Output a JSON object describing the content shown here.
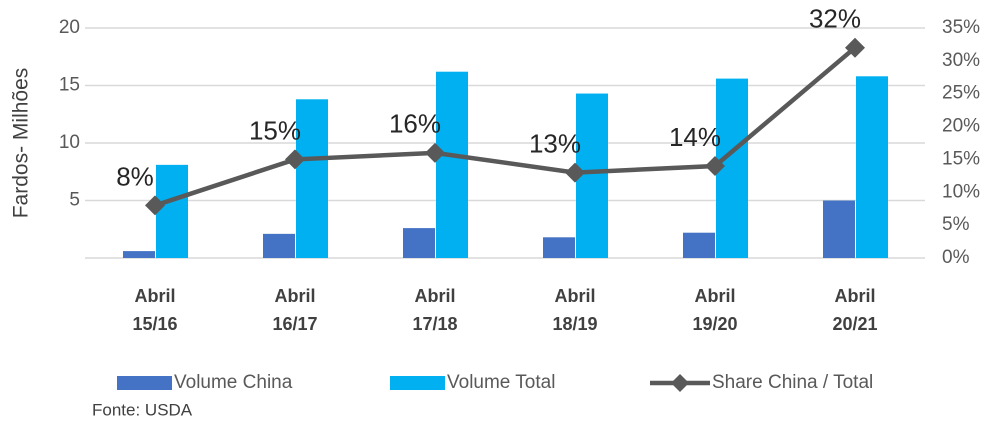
{
  "chart_data": {
    "type": "bar-line",
    "y_label": "Fardos- Milhões",
    "categories": [
      [
        "Abril",
        "15/16"
      ],
      [
        "Abril",
        "16/17"
      ],
      [
        "Abril",
        "17/18"
      ],
      [
        "Abril",
        "18/19"
      ],
      [
        "Abril",
        "19/20"
      ],
      [
        "Abril",
        "20/21"
      ]
    ],
    "series": [
      {
        "name": "Volume China",
        "color": "#4472c4",
        "type": "bar",
        "values": [
          0.6,
          2.1,
          2.6,
          1.8,
          2.2,
          5.0
        ]
      },
      {
        "name": "Volume Total",
        "color": "#00b0f0",
        "type": "bar",
        "values": [
          8.1,
          13.8,
          16.2,
          14.3,
          15.6,
          15.8
        ]
      },
      {
        "name": "Share China / Total",
        "color": "#595959",
        "type": "line",
        "axis": "y2",
        "values": [
          8,
          15,
          16,
          13,
          14,
          32
        ],
        "value_labels": [
          "8%",
          "15%",
          "16%",
          "13%",
          "14%",
          "32%"
        ]
      }
    ],
    "ylim": [
      0,
      20
    ],
    "yticks": [
      5,
      10,
      15,
      20
    ],
    "y2lim": [
      0,
      35
    ],
    "y2ticks": [
      {
        "value": 0,
        "label": "0%"
      },
      {
        "value": 5,
        "label": "5%"
      },
      {
        "value": 10,
        "label": "10%"
      },
      {
        "value": 15,
        "label": "15%"
      },
      {
        "value": 20,
        "label": "20%"
      },
      {
        "value": 25,
        "label": "25%"
      },
      {
        "value": 30,
        "label": "30%"
      },
      {
        "value": 35,
        "label": "35%"
      }
    ],
    "grid": true,
    "source": "Fonte: USDA"
  }
}
